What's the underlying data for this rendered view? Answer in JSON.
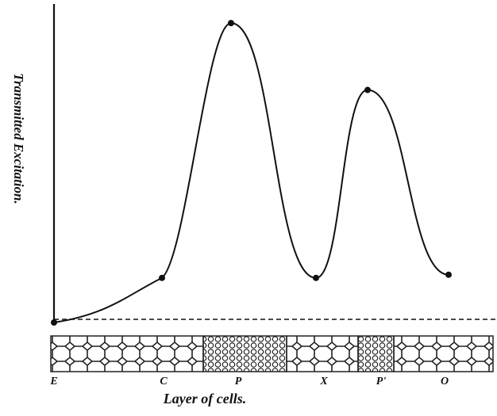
{
  "chart_data": {
    "type": "line",
    "y_label": "Transmitted Excitation.",
    "x_label": "Layer of cells.",
    "categories": [
      "E",
      "C",
      "P",
      "X",
      "P'",
      "O"
    ],
    "values": [
      0,
      14,
      94,
      14,
      73,
      15
    ],
    "ylim": [
      0,
      100
    ],
    "color": "#111111"
  }
}
